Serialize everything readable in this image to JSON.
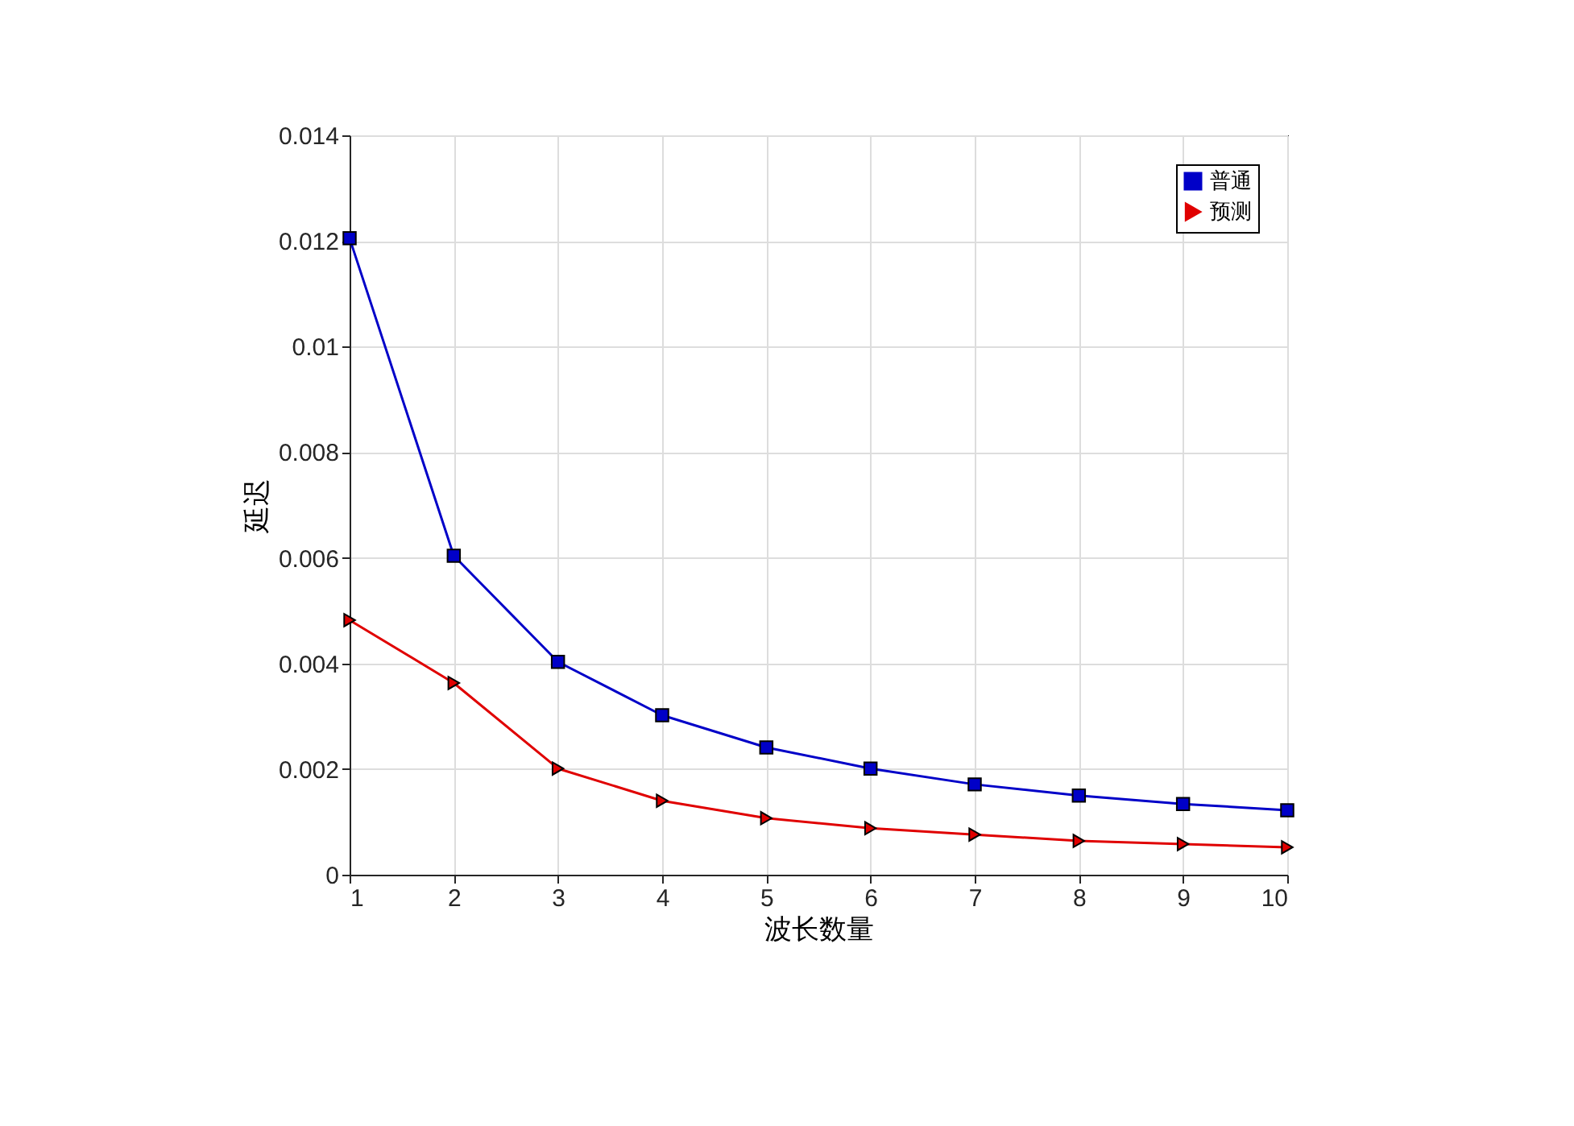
{
  "chart_data": {
    "type": "line",
    "xlabel": "波长数量",
    "ylabel": "延迟",
    "x": [
      1,
      2,
      3,
      4,
      5,
      6,
      7,
      8,
      9,
      10
    ],
    "series": [
      {
        "name": "普通",
        "color": "#0000c8",
        "marker": "square",
        "values": [
          0.01205,
          0.00604,
          0.00403,
          0.00302,
          0.00241,
          0.00201,
          0.00171,
          0.0015,
          0.00134,
          0.00122
        ]
      },
      {
        "name": "预测",
        "color": "#e00000",
        "marker": "triangle",
        "values": [
          0.00482,
          0.00363,
          0.00201,
          0.0014,
          0.00107,
          0.00088,
          0.00076,
          0.00064,
          0.00058,
          0.00052
        ]
      }
    ],
    "xlim": [
      1,
      10
    ],
    "xticks": [
      1,
      2,
      3,
      4,
      5,
      6,
      7,
      8,
      9,
      10
    ],
    "ylim": [
      0,
      0.014
    ],
    "yticks": [
      0,
      0.002,
      0.004,
      0.006,
      0.008,
      0.01,
      0.012,
      0.014
    ],
    "grid": true,
    "legend": "top right"
  }
}
